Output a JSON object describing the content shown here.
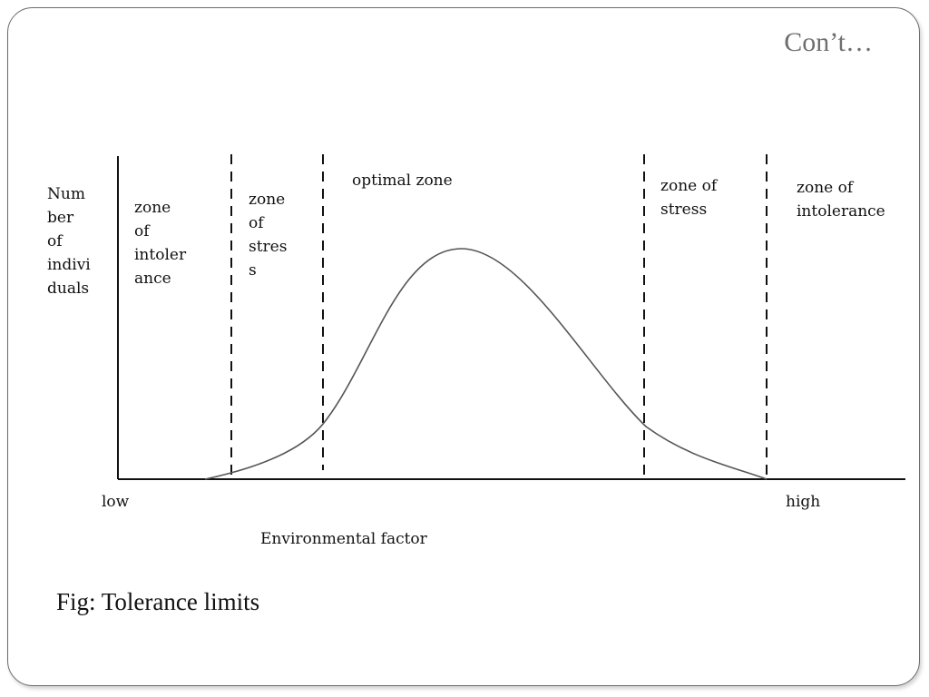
{
  "slide": {
    "title": "Con’t…",
    "caption": "Fig: Tolerance limits"
  },
  "diagram": {
    "y_axis_label": [
      "Num",
      "ber",
      "of",
      "indivi",
      "duals"
    ],
    "x_axis_label": "Environmental factor",
    "x_low_label": "low",
    "x_high_label": "high",
    "zones": [
      {
        "lines": [
          "zone",
          "of",
          "intoler",
          "ance"
        ]
      },
      {
        "lines": [
          "zone",
          "of",
          "stres",
          "s"
        ]
      },
      {
        "lines": [
          "optimal zone"
        ]
      },
      {
        "lines": [
          "zone of",
          "stress"
        ]
      },
      {
        "lines": [
          "zone of",
          "intolerance"
        ]
      }
    ],
    "curve_color": "#555555",
    "line_color": "#111111"
  }
}
